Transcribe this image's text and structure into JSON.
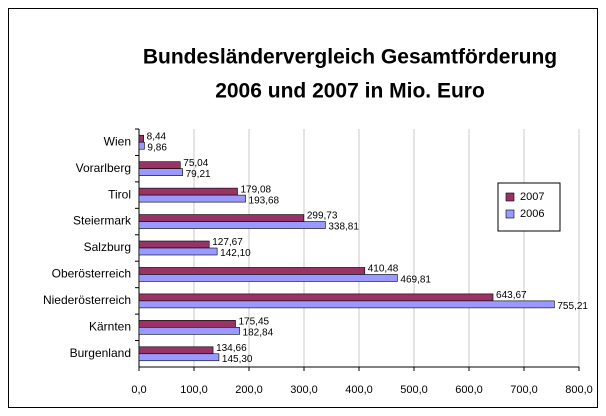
{
  "chart_data": {
    "type": "bar",
    "orientation": "horizontal",
    "title": [
      "Bundesländervergleich Gesamtförderung",
      "2006 und 2007 in Mio. Euro"
    ],
    "categories": [
      "Wien",
      "Vorarlberg",
      "Tirol",
      "Steiermark",
      "Salzburg",
      "Oberösterreich",
      "Niederösterreich",
      "Kärnten",
      "Burgenland"
    ],
    "series": [
      {
        "name": "2007",
        "color": "#993366",
        "values": [
          8.44,
          75.04,
          179.08,
          299.73,
          127.67,
          410.48,
          643.67,
          175.45,
          134.66
        ],
        "value_labels": [
          "8,44",
          "75,04",
          "179,08",
          "299,73",
          "127,67",
          "410,48",
          "643,67",
          "175,45",
          "134,66"
        ]
      },
      {
        "name": "2006",
        "color": "#9999ff",
        "values": [
          9.86,
          79.21,
          193.68,
          338.81,
          142.1,
          469.81,
          755.21,
          182.84,
          145.3
        ],
        "value_labels": [
          "9,86",
          "79,21",
          "193,68",
          "338,81",
          "142,10",
          "469,81",
          "755,21",
          "182,84",
          "145,30"
        ]
      }
    ],
    "xlim": [
      0,
      800
    ],
    "xticks": [
      {
        "value": 0,
        "label": "0,0"
      },
      {
        "value": 100,
        "label": "100,0"
      },
      {
        "value": 200,
        "label": "200,0"
      },
      {
        "value": 300,
        "label": "300,0"
      },
      {
        "value": 400,
        "label": "400,0"
      },
      {
        "value": 500,
        "label": "500,0"
      },
      {
        "value": 600,
        "label": "600,0"
      },
      {
        "value": 700,
        "label": "700,0"
      },
      {
        "value": 800,
        "label": "800,0"
      }
    ],
    "grid": true,
    "legend": "right"
  }
}
